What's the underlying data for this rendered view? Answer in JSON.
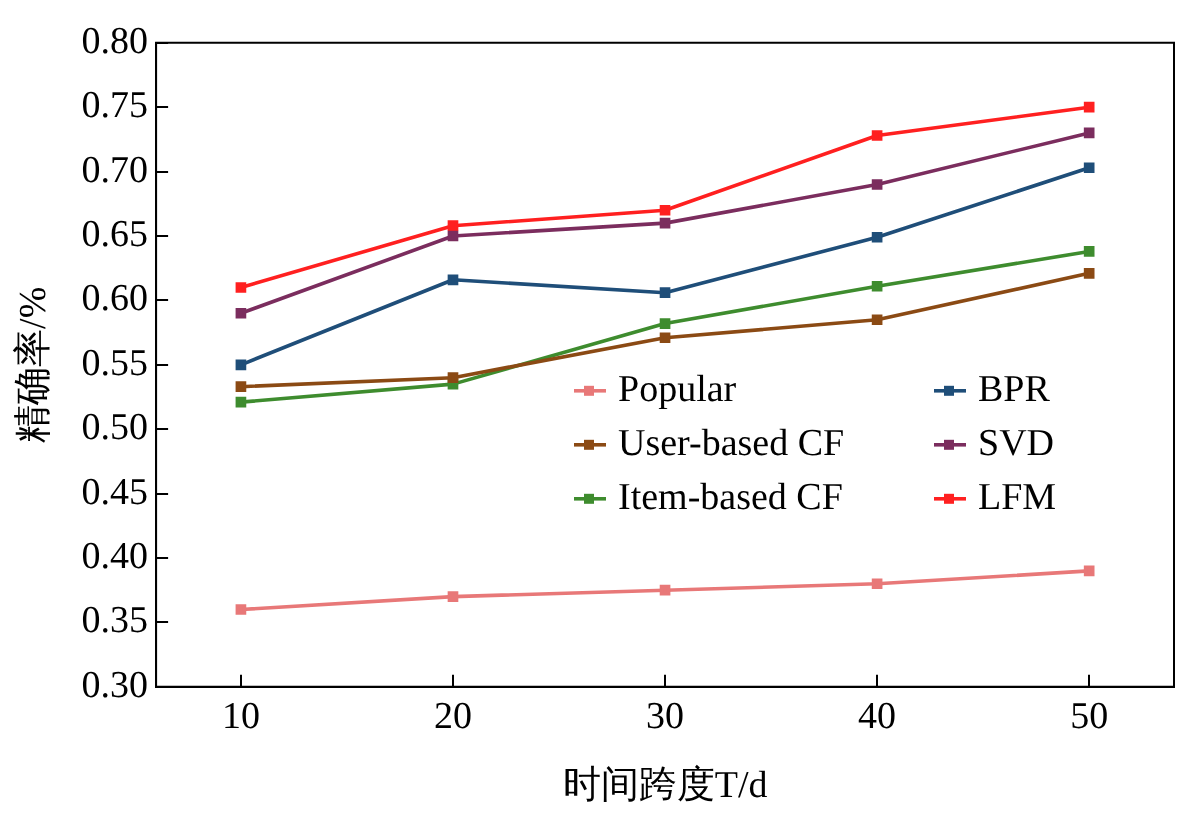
{
  "chart_data": {
    "type": "line",
    "xlabel": "时间跨度T/d",
    "ylabel": "精确率/%",
    "x": [
      10,
      20,
      30,
      40,
      50
    ],
    "xlim": [
      6,
      54
    ],
    "xticks": [
      10,
      20,
      30,
      40,
      50
    ],
    "ylim": [
      0.3,
      0.8
    ],
    "yticks": [
      {
        "value": 0.3,
        "label": "0.30"
      },
      0.35,
      {
        "value": 0.4,
        "label": "0.40"
      },
      0.45,
      {
        "value": 0.5,
        "label": "0.50"
      },
      0.55,
      {
        "value": 0.6,
        "label": "0.60"
      },
      0.65,
      {
        "value": 0.7,
        "label": "0.70"
      },
      0.75,
      {
        "value": 0.8,
        "label": "0.80"
      }
    ],
    "marker": "square",
    "grid": false,
    "legend": "right",
    "series": [
      {
        "name": "Popular",
        "color": "#e87878",
        "values": [
          0.36,
          0.37,
          0.375,
          0.38,
          0.39
        ]
      },
      {
        "name": "User-based CF",
        "color": "#8b4a14",
        "values": [
          0.533,
          0.54,
          0.571,
          0.585,
          0.621
        ]
      },
      {
        "name": "Item-based CF",
        "color": "#3e8c2e",
        "values": [
          0.521,
          0.535,
          0.582,
          0.611,
          0.638
        ]
      },
      {
        "name": "BPR",
        "color": "#1f4e79",
        "values": [
          0.55,
          0.616,
          0.606,
          0.649,
          0.703
        ]
      },
      {
        "name": "SVD",
        "color": "#7b2d5e",
        "values": [
          0.59,
          0.65,
          0.66,
          0.69,
          0.73
        ]
      },
      {
        "name": "LFM",
        "color": "#ff2020",
        "values": [
          0.61,
          0.658,
          0.67,
          0.728,
          0.75
        ]
      }
    ]
  }
}
